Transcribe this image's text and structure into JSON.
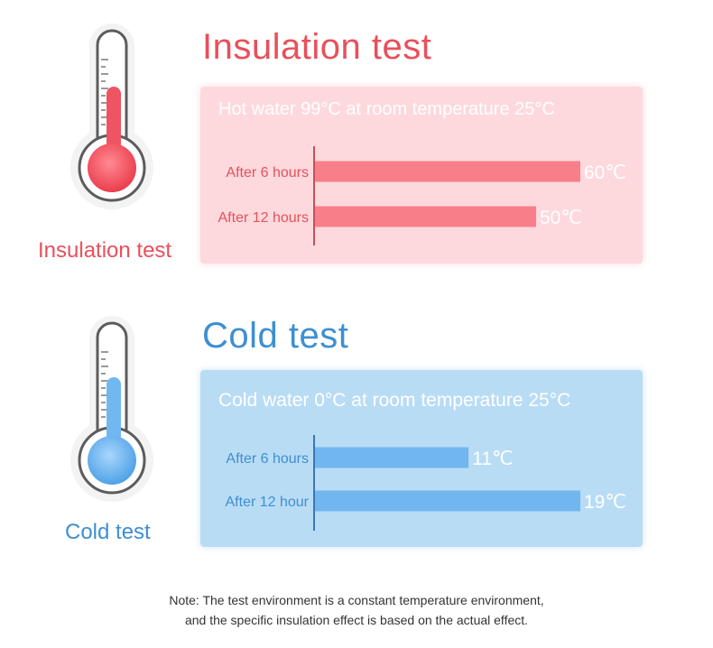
{
  "colors": {
    "hot_accent": "#e8505b",
    "hot_bar": "#f87f89",
    "hot_panel": "#fdd9dd",
    "cold_accent": "#3e8fd0",
    "cold_bar": "#71b6ee",
    "cold_panel": "#b9dcf5",
    "bar_label": "#ffffff"
  },
  "hot": {
    "title": "Insulation test",
    "side_label": "Insulation test",
    "icon": "thermometer-hot-icon"
  },
  "cold": {
    "title": "Cold test",
    "side_label": "Cold test",
    "icon": "thermometer-cold-icon"
  },
  "note": {
    "line1": "Note: The test environment is a constant temperature environment,",
    "line2": "and the specific insulation effect is based on the actual effect."
  },
  "chart_data": [
    {
      "type": "bar",
      "orientation": "horizontal",
      "title": "Hot water 99°C at room temperature 25°C",
      "categories": [
        "After 6 hours",
        "After 12 hours"
      ],
      "values": [
        60,
        50
      ],
      "value_labels": [
        "60℃",
        "50℃"
      ],
      "xlim": [
        0,
        60
      ],
      "grid": false
    },
    {
      "type": "bar",
      "orientation": "horizontal",
      "title": "Cold water 0°C at room temperature 25°C",
      "categories": [
        "After 6 hours",
        "After 12 hour"
      ],
      "values": [
        11,
        19
      ],
      "value_labels": [
        "11℃",
        "19℃"
      ],
      "xlim": [
        0,
        19
      ],
      "grid": false
    }
  ]
}
